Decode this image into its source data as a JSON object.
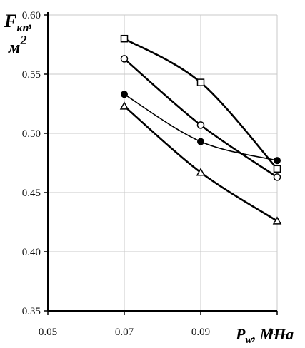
{
  "chart_data": {
    "type": "line",
    "y_label_main": "F",
    "y_label_sub": "кп",
    "y_label_unit": "м",
    "y_label_unit_power": "2",
    "x_label_main": "P",
    "x_label_sub": "w",
    "x_label_unit": "МПа",
    "xlim": [
      0.05,
      0.11
    ],
    "ylim": [
      0.35,
      0.6
    ],
    "x_ticks": [
      "0.05",
      "0.07",
      "0.09",
      "0.11"
    ],
    "y_ticks": [
      "0.35",
      "0.40",
      "0.45",
      "0.50",
      "0.55",
      "0.60"
    ],
    "grid": true,
    "x": [
      0.07,
      0.09,
      0.11
    ],
    "series": [
      {
        "marker": "square",
        "values": [
          0.58,
          0.543,
          0.47
        ]
      },
      {
        "marker": "circle-open",
        "values": [
          0.563,
          0.507,
          0.463
        ]
      },
      {
        "marker": "circle-filled",
        "values": [
          0.533,
          0.493,
          0.477
        ]
      },
      {
        "marker": "triangle",
        "values": [
          0.523,
          0.467,
          0.426
        ]
      }
    ]
  }
}
